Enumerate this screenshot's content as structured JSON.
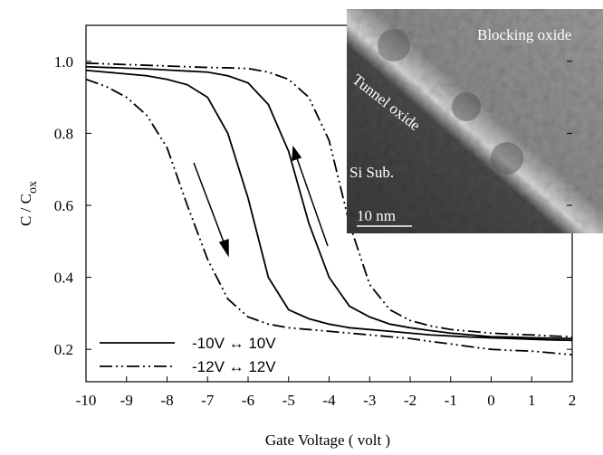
{
  "chart_data": {
    "type": "line",
    "xlabel": "Gate Voltage ( volt )",
    "ylabel": "C / C",
    "ylabel_sub": "ox",
    "x": [
      -10,
      -9.5,
      -9,
      -8.5,
      -8,
      -7.5,
      -7,
      -6.5,
      -6,
      -5.5,
      -5,
      -4.5,
      -4,
      -3.5,
      -3,
      -2.5,
      -2,
      -1.5,
      -1,
      -0.5,
      0,
      0.5,
      1,
      1.5,
      2
    ],
    "series": [
      {
        "name": "-10V ↔ 10V",
        "color": "#000000",
        "dash": "solid",
        "values": [
          0.975,
          0.97,
          0.965,
          0.96,
          0.95,
          0.935,
          0.9,
          0.8,
          0.62,
          0.4,
          0.31,
          0.285,
          0.27,
          0.26,
          0.255,
          0.25,
          0.245,
          0.24,
          0.237,
          0.234,
          0.232,
          0.23,
          0.228,
          0.226,
          0.225
        ],
        "values_return": [
          0.985,
          0.983,
          0.981,
          0.979,
          0.976,
          0.973,
          0.97,
          0.96,
          0.94,
          0.88,
          0.75,
          0.55,
          0.4,
          0.32,
          0.29,
          0.27,
          0.26,
          0.252,
          0.245,
          0.24,
          0.235,
          0.234,
          0.232,
          0.231,
          0.23
        ]
      },
      {
        "name": "-12V ↔ 12V",
        "color": "#000000",
        "dash": "dashdotdot",
        "values": [
          0.95,
          0.93,
          0.9,
          0.85,
          0.76,
          0.6,
          0.45,
          0.34,
          0.29,
          0.27,
          0.26,
          0.255,
          0.25,
          0.245,
          0.24,
          0.235,
          0.23,
          0.222,
          0.215,
          0.207,
          0.2,
          0.197,
          0.195,
          0.19,
          0.185
        ],
        "values_return": [
          0.995,
          0.993,
          0.991,
          0.989,
          0.987,
          0.985,
          0.983,
          0.982,
          0.98,
          0.97,
          0.95,
          0.9,
          0.78,
          0.55,
          0.38,
          0.31,
          0.28,
          0.265,
          0.255,
          0.25,
          0.245,
          0.242,
          0.24,
          0.237,
          0.235
        ]
      }
    ],
    "xlim": [
      -10,
      2
    ],
    "ylim": [
      0.11,
      1.1
    ],
    "xticks": [
      -10,
      -9,
      -8,
      -7,
      -6,
      -5,
      -4,
      -3,
      -2,
      -1,
      0,
      1,
      2
    ],
    "yticks": [
      0.2,
      0.4,
      0.6,
      0.8,
      {
        "value": 1,
        "label": "1.0"
      }
    ],
    "inset_labels": [
      "Blocking oxide",
      "Tunnel oxide",
      "Si Sub.",
      "10 nm"
    ]
  }
}
